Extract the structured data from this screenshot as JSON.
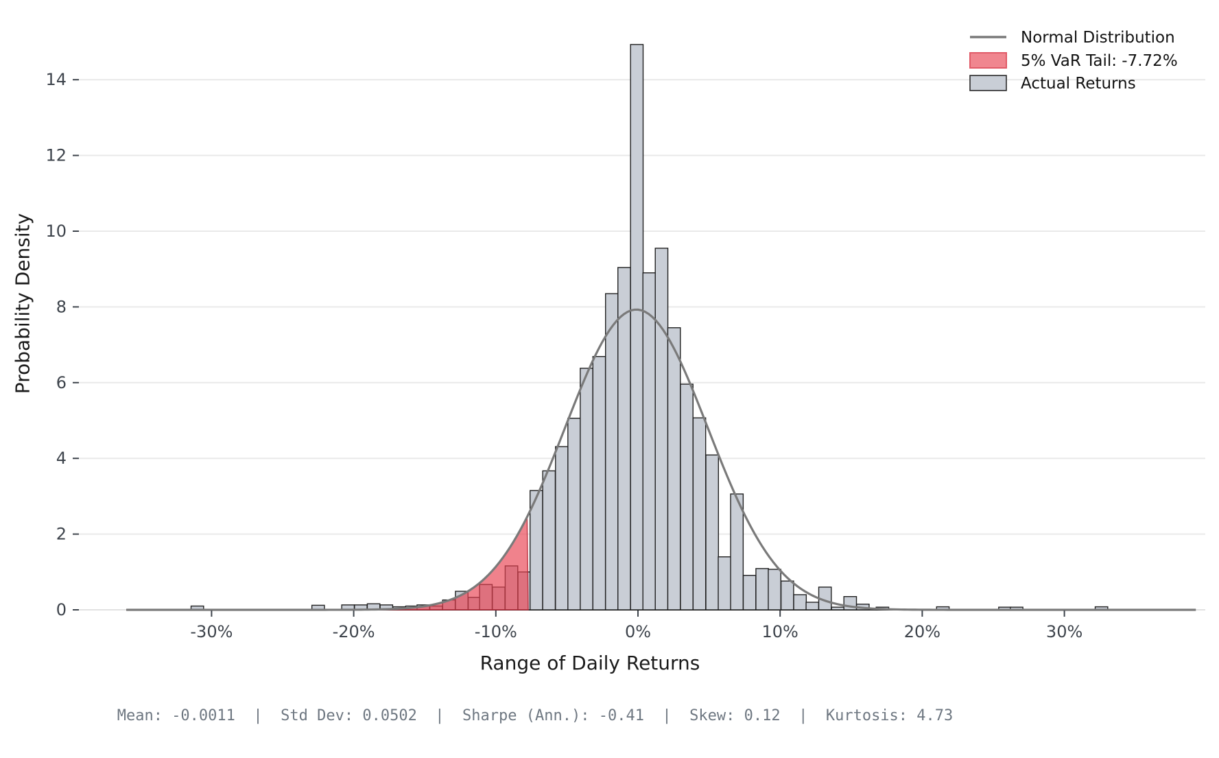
{
  "colors": {
    "bar_fill": "#c9ced6",
    "bar_edge": "#202020",
    "curve": "#7a7a7a",
    "tail_fill": "rgb(232,66,80)",
    "tail_alpha": 0.66,
    "tail_edge": "rgba(185,40,55,0.85)",
    "legend_tail_fill": "#f0868f",
    "legend_tail_edge": "#e05a67",
    "grid": "#e9e9e9",
    "spine": "#d9d9d9",
    "tick": "#3d434b",
    "zero_line": "#2a2a2a",
    "footer_text": "#6e7781"
  },
  "axes": {
    "xlabel": "Range of Daily Returns",
    "ylabel": "Probability Density",
    "x_ticks": [
      {
        "value": -30,
        "label": "-30%"
      },
      {
        "value": -20,
        "label": "-20%"
      },
      {
        "value": -10,
        "label": "-10%"
      },
      {
        "value": 0,
        "label": "0%"
      },
      {
        "value": 10,
        "label": "10%"
      },
      {
        "value": 20,
        "label": "20%"
      },
      {
        "value": 30,
        "label": "30%"
      }
    ],
    "y_ticks": [
      0,
      2,
      4,
      6,
      8,
      10,
      12,
      14
    ]
  },
  "legend": {
    "items": [
      {
        "type": "line",
        "label": "Normal Distribution"
      },
      {
        "type": "patch-red",
        "label": "5% VaR Tail: -7.72%"
      },
      {
        "type": "patch-gray",
        "label": "Actual Returns"
      }
    ]
  },
  "stats_bar": {
    "text": "Mean: -0.0011  |  Std Dev: 0.0502  |  Sharpe (Ann.): -0.41  |  Skew: 0.12  |  Kurtosis: 4.73",
    "mean": "-0.0011",
    "std_dev": "0.0502",
    "sharpe_ann": "-0.41",
    "skew": "0.12",
    "kurtosis": "4.73"
  },
  "chart_data": {
    "type": "bar",
    "subtype": "histogram-with-normal-overlay",
    "xlabel": "Range of Daily Returns",
    "ylabel": "Probability Density",
    "xlim_pct": [
      -37.5,
      40.5
    ],
    "ylim": [
      0,
      15.9
    ],
    "grid": "horizontal",
    "legend_position": "upper-right",
    "bin_width_pct": 0.884,
    "bars_center_pct_and_density": [
      [
        -31.0,
        0.1
      ],
      [
        -22.5,
        0.12
      ],
      [
        -20.4,
        0.13
      ],
      [
        -19.5,
        0.13
      ],
      [
        -18.6,
        0.16
      ],
      [
        -17.7,
        0.13
      ],
      [
        -16.8,
        0.08
      ],
      [
        -15.9,
        0.1
      ],
      [
        -15.1,
        0.13
      ],
      [
        -14.2,
        0.1
      ],
      [
        -13.3,
        0.26
      ],
      [
        -12.4,
        0.49
      ],
      [
        -11.5,
        0.33
      ],
      [
        -10.7,
        0.67
      ],
      [
        -9.8,
        0.6
      ],
      [
        -8.9,
        1.16
      ],
      [
        -8.0,
        1.0
      ],
      [
        -7.15,
        3.15
      ],
      [
        -6.26,
        3.67
      ],
      [
        -5.36,
        4.31
      ],
      [
        -4.49,
        5.06
      ],
      [
        -3.62,
        6.38
      ],
      [
        -2.73,
        6.69
      ],
      [
        -1.84,
        8.35
      ],
      [
        -0.97,
        9.04
      ],
      [
        -0.08,
        14.93
      ],
      [
        0.79,
        8.9
      ],
      [
        1.66,
        9.55
      ],
      [
        2.54,
        7.45
      ],
      [
        3.43,
        5.96
      ],
      [
        4.32,
        5.07
      ],
      [
        5.22,
        4.09
      ],
      [
        6.09,
        1.4
      ],
      [
        6.96,
        3.06
      ],
      [
        7.85,
        0.91
      ],
      [
        8.74,
        1.09
      ],
      [
        9.61,
        1.07
      ],
      [
        10.51,
        0.76
      ],
      [
        11.4,
        0.4
      ],
      [
        12.27,
        0.2
      ],
      [
        13.16,
        0.6
      ],
      [
        14.06,
        0.07
      ],
      [
        14.93,
        0.35
      ],
      [
        15.82,
        0.15
      ],
      [
        17.2,
        0.07
      ],
      [
        21.45,
        0.08
      ],
      [
        25.82,
        0.07
      ],
      [
        26.64,
        0.07
      ],
      [
        32.61,
        0.08
      ]
    ],
    "normal_curve": {
      "mean_pct": -0.11,
      "sigma_pct": 5.02,
      "peak_density": 7.93,
      "x_range_pct": [
        -36.0,
        39.4
      ]
    },
    "var_5pct_threshold_pct": -7.72,
    "data_extent_pct": [
      -36.0,
      36.4
    ]
  }
}
